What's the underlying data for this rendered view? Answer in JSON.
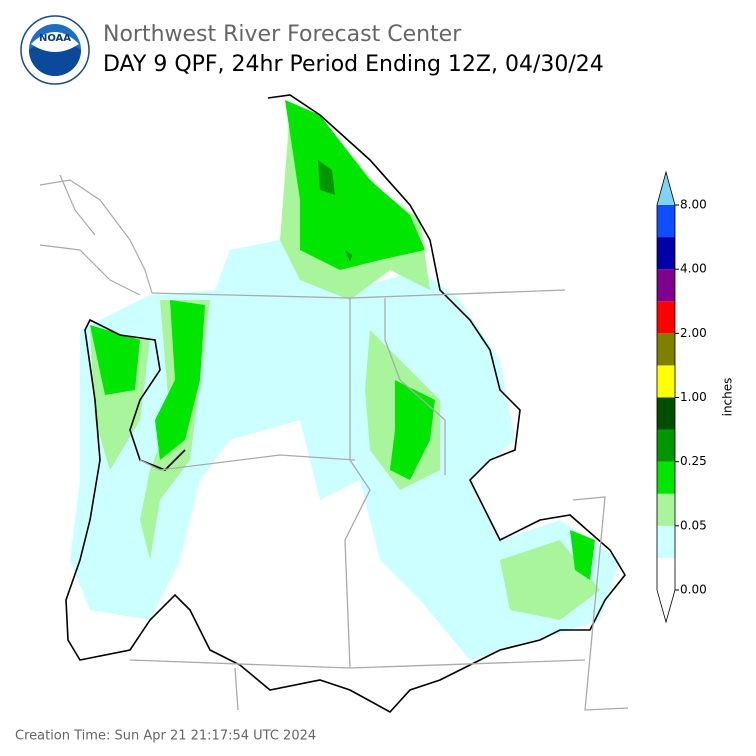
{
  "header": {
    "title": "Northwest River Forecast Center",
    "subtitle": "DAY 9 QPF, 24hr Period Ending 12Z, 04/30/24",
    "logo_text": "NOAA"
  },
  "colorbar": {
    "label": "inches",
    "colors": [
      "#ffffff",
      "#ccffff",
      "#a8f59c",
      "#00e600",
      "#009600",
      "#004f00",
      "#ffff00",
      "#7f7f00",
      "#ff0000",
      "#800090",
      "#0000a8",
      "#0f4dff"
    ],
    "under_color": "#ffffff",
    "over_color": "#7fd4f5",
    "ticks": [
      {
        "value": 0,
        "label": "0.00"
      },
      {
        "value": 0.05,
        "label": "0.05"
      },
      {
        "value": 0.25,
        "label": "0.25"
      },
      {
        "value": 1,
        "label": "1.00"
      },
      {
        "value": 2,
        "label": "2.00"
      },
      {
        "value": 4,
        "label": "4.00"
      },
      {
        "value": 8,
        "label": "8.00"
      }
    ]
  },
  "footer": {
    "creation_time": "Creation Time: Sun Apr 21 21:17:54 UTC 2024"
  }
}
